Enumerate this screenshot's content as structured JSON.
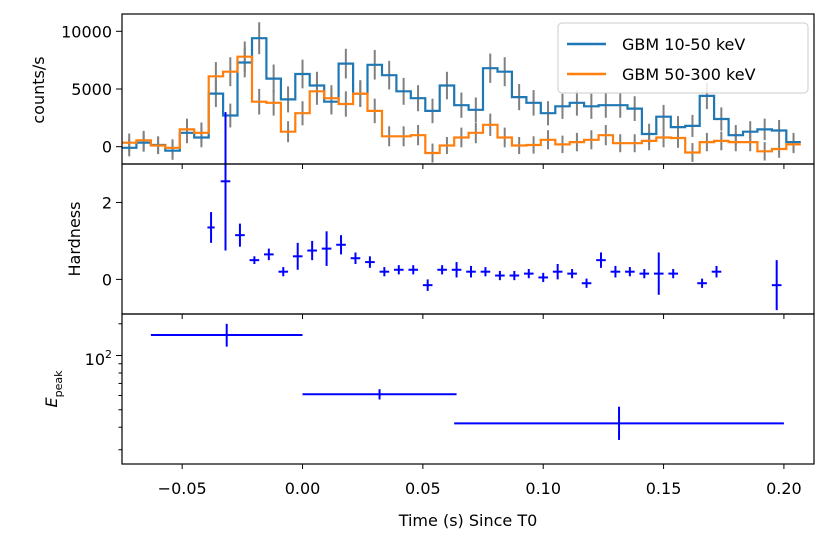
{
  "colors": {
    "low": "#1f77b4",
    "high": "#ff7f0e",
    "err": "#808080",
    "hard": "#0000ff"
  },
  "chart_data": [
    {
      "type": "line",
      "panel": "light-curve",
      "ylabel": "counts/s",
      "xlim": [
        -0.075,
        0.2125
      ],
      "ylim": [
        -1500,
        11500
      ],
      "yticks": [
        0,
        5000,
        10000
      ],
      "ytick_labels": [
        "0",
        "5000",
        "10000"
      ],
      "legend_position": "top-right",
      "bin_edges": [
        -0.075,
        -0.069,
        -0.063,
        -0.057,
        -0.051,
        -0.045,
        -0.039,
        -0.033,
        -0.027,
        -0.021,
        -0.015,
        -0.009,
        -0.003,
        0.003,
        0.009,
        0.015,
        0.021,
        0.027,
        0.033,
        0.039,
        0.045,
        0.051,
        0.057,
        0.063,
        0.069,
        0.075,
        0.081,
        0.087,
        0.093,
        0.099,
        0.105,
        0.111,
        0.117,
        0.123,
        0.129,
        0.135,
        0.141,
        0.147,
        0.153,
        0.159,
        0.165,
        0.171,
        0.177,
        0.183,
        0.189,
        0.195,
        0.201,
        0.207
      ],
      "series": [
        {
          "name": "GBM 10-50 keV",
          "color_key": "low",
          "values": [
            -100,
            350,
            150,
            -350,
            1200,
            800,
            4600,
            2700,
            7300,
            9400,
            5900,
            4100,
            6300,
            5300,
            3900,
            7200,
            4600,
            7100,
            6200,
            4800,
            4200,
            3100,
            5300,
            3600,
            3200,
            6800,
            6500,
            4300,
            3800,
            2900,
            3500,
            3800,
            3500,
            3600,
            3600,
            3300,
            1100,
            2600,
            1700,
            1800,
            4400,
            2400,
            1000,
            1300,
            1500,
            1400,
            400
          ]
        },
        {
          "name": "GBM 50-300 keV",
          "color_key": "high",
          "values": [
            350,
            550,
            100,
            -100,
            1500,
            1200,
            6100,
            6500,
            7800,
            3900,
            3800,
            1300,
            2900,
            4800,
            4200,
            3700,
            4600,
            3100,
            900,
            900,
            1000,
            -550,
            100,
            800,
            1200,
            1900,
            800,
            100,
            150,
            600,
            200,
            400,
            600,
            1000,
            300,
            300,
            500,
            800,
            750,
            -500,
            400,
            500,
            400,
            400,
            -400,
            -200,
            200
          ]
        }
      ]
    },
    {
      "type": "scatter",
      "panel": "hardness",
      "ylabel": "Hardness",
      "xlim": [
        -0.075,
        0.2125
      ],
      "ylim": [
        -0.9,
        3.0
      ],
      "yticks": [
        0,
        2
      ],
      "ytick_labels": [
        "0",
        "2"
      ],
      "points": [
        {
          "x": -0.038,
          "y": 1.35,
          "xerr": 0.0015,
          "yerr": 0.4
        },
        {
          "x": -0.032,
          "y": 2.55,
          "xerr": 0.002,
          "yerr": 1.8
        },
        {
          "x": -0.026,
          "y": 1.15,
          "xerr": 0.002,
          "yerr": 0.3
        },
        {
          "x": -0.02,
          "y": 0.5,
          "xerr": 0.002,
          "yerr": 0.1
        },
        {
          "x": -0.014,
          "y": 0.65,
          "xerr": 0.002,
          "yerr": 0.15
        },
        {
          "x": -0.008,
          "y": 0.2,
          "xerr": 0.002,
          "yerr": 0.12
        },
        {
          "x": -0.002,
          "y": 0.6,
          "xerr": 0.002,
          "yerr": 0.35
        },
        {
          "x": 0.004,
          "y": 0.75,
          "xerr": 0.002,
          "yerr": 0.25
        },
        {
          "x": 0.01,
          "y": 0.8,
          "xerr": 0.002,
          "yerr": 0.45
        },
        {
          "x": 0.016,
          "y": 0.9,
          "xerr": 0.002,
          "yerr": 0.25
        },
        {
          "x": 0.022,
          "y": 0.55,
          "xerr": 0.002,
          "yerr": 0.15
        },
        {
          "x": 0.028,
          "y": 0.45,
          "xerr": 0.002,
          "yerr": 0.15
        },
        {
          "x": 0.034,
          "y": 0.2,
          "xerr": 0.002,
          "yerr": 0.12
        },
        {
          "x": 0.04,
          "y": 0.25,
          "xerr": 0.002,
          "yerr": 0.12
        },
        {
          "x": 0.046,
          "y": 0.25,
          "xerr": 0.002,
          "yerr": 0.12
        },
        {
          "x": 0.052,
          "y": -0.15,
          "xerr": 0.002,
          "yerr": 0.15
        },
        {
          "x": 0.058,
          "y": 0.25,
          "xerr": 0.002,
          "yerr": 0.12
        },
        {
          "x": 0.064,
          "y": 0.25,
          "xerr": 0.002,
          "yerr": 0.2
        },
        {
          "x": 0.07,
          "y": 0.2,
          "xerr": 0.002,
          "yerr": 0.15
        },
        {
          "x": 0.076,
          "y": 0.2,
          "xerr": 0.002,
          "yerr": 0.12
        },
        {
          "x": 0.082,
          "y": 0.1,
          "xerr": 0.002,
          "yerr": 0.12
        },
        {
          "x": 0.088,
          "y": 0.1,
          "xerr": 0.002,
          "yerr": 0.12
        },
        {
          "x": 0.094,
          "y": 0.15,
          "xerr": 0.002,
          "yerr": 0.12
        },
        {
          "x": 0.1,
          "y": 0.05,
          "xerr": 0.002,
          "yerr": 0.12
        },
        {
          "x": 0.106,
          "y": 0.2,
          "xerr": 0.002,
          "yerr": 0.2
        },
        {
          "x": 0.112,
          "y": 0.15,
          "xerr": 0.002,
          "yerr": 0.12
        },
        {
          "x": 0.118,
          "y": -0.1,
          "xerr": 0.002,
          "yerr": 0.12
        },
        {
          "x": 0.124,
          "y": 0.5,
          "xerr": 0.002,
          "yerr": 0.2
        },
        {
          "x": 0.13,
          "y": 0.2,
          "xerr": 0.002,
          "yerr": 0.15
        },
        {
          "x": 0.136,
          "y": 0.2,
          "xerr": 0.002,
          "yerr": 0.12
        },
        {
          "x": 0.142,
          "y": 0.15,
          "xerr": 0.002,
          "yerr": 0.12
        },
        {
          "x": 0.148,
          "y": 0.15,
          "xerr": 0.002,
          "yerr": 0.55
        },
        {
          "x": 0.154,
          "y": 0.15,
          "xerr": 0.002,
          "yerr": 0.12
        },
        {
          "x": 0.166,
          "y": -0.1,
          "xerr": 0.002,
          "yerr": 0.12
        },
        {
          "x": 0.172,
          "y": 0.2,
          "xerr": 0.002,
          "yerr": 0.15
        },
        {
          "x": 0.197,
          "y": -0.15,
          "xerr": 0.002,
          "yerr": 0.65
        }
      ]
    },
    {
      "type": "scatter",
      "panel": "epeak",
      "ylabel": "E",
      "ylabel_sub": "peak",
      "yscale": "log",
      "xlim": [
        -0.075,
        0.2125
      ],
      "ylim": [
        25,
        170
      ],
      "ytick_labels": [
        "10",
        "2"
      ],
      "points": [
        {
          "x": -0.0315,
          "y": 130,
          "xlo": -0.063,
          "xhi": 0.0,
          "ylo": 112,
          "yhi": 150
        },
        {
          "x": 0.032,
          "y": 61,
          "xlo": 0.0,
          "xhi": 0.064,
          "ylo": 57,
          "yhi": 65
        },
        {
          "x": 0.1315,
          "y": 42,
          "xlo": 0.063,
          "xhi": 0.2,
          "ylo": 34,
          "yhi": 52
        }
      ]
    }
  ],
  "xaxis": {
    "label": "Time (s) Since T0",
    "ticks": [
      -0.05,
      0.0,
      0.05,
      0.1,
      0.15,
      0.2
    ],
    "tick_labels": [
      "−0.05",
      "0.00",
      "0.05",
      "0.10",
      "0.15",
      "0.20"
    ]
  }
}
